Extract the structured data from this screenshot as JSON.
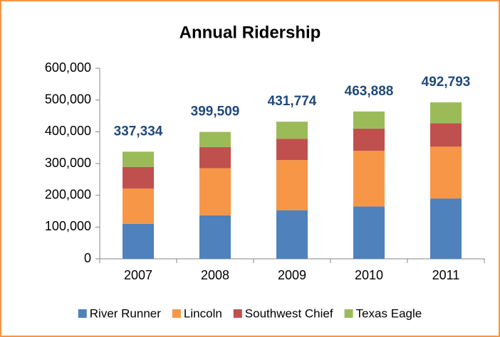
{
  "chart_data": {
    "type": "stacked_bar",
    "title": "Annual Ridership",
    "categories": [
      "2007",
      "2008",
      "2009",
      "2010",
      "2011"
    ],
    "series": [
      {
        "name": "River Runner",
        "color": "#4f81bd",
        "values": [
          110000,
          137000,
          153000,
          165000,
          190000
        ]
      },
      {
        "name": "Lincoln",
        "color": "#f79646",
        "values": [
          111000,
          148000,
          158000,
          175000,
          163000
        ]
      },
      {
        "name": "Southwest Chief",
        "color": "#c0504d",
        "values": [
          68000,
          67000,
          67000,
          70000,
          74000
        ]
      },
      {
        "name": "Texas Eagle",
        "color": "#9bbb59",
        "values": [
          48334,
          47509,
          53774,
          53888,
          65793
        ]
      }
    ],
    "totals": [
      337334,
      399509,
      431774,
      463888,
      492793
    ],
    "total_labels": [
      "337,334",
      "399,509",
      "431,774",
      "463,888",
      "492,793"
    ],
    "ylim": [
      0,
      600000
    ],
    "yticks": [
      0,
      {
        "value": 100000,
        "label": "100,000"
      },
      {
        "value": 200000,
        "label": "200,000"
      },
      {
        "value": 300000,
        "label": "300,000"
      },
      {
        "value": 400000,
        "label": "400,000"
      },
      {
        "value": 500000,
        "label": "500,000"
      },
      {
        "value": 600000,
        "label": "600,000"
      }
    ],
    "grid": false,
    "legend": "bottom"
  }
}
